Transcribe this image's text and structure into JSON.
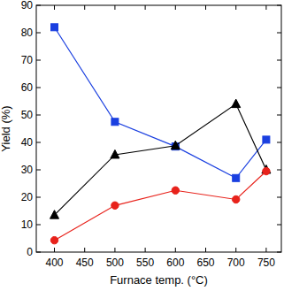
{
  "chart_data": {
    "type": "line",
    "x_label": "Furnace temp. (°C)",
    "y_label": "Yield (%)",
    "x": [
      400,
      500,
      600,
      700,
      750
    ],
    "series": [
      {
        "color": "#1a3fe0",
        "marker": "square",
        "line_style": "solid",
        "values": [
          82,
          47.5,
          38.5,
          27,
          41
        ]
      },
      {
        "color": "#000000",
        "marker": "triangle",
        "line_style": "solid",
        "values": [
          13.5,
          35.5,
          38.8,
          54,
          30
        ]
      },
      {
        "color": "#e8221b",
        "marker": "circle",
        "line_style": "solid",
        "values": [
          4.3,
          17,
          22.5,
          19.2,
          29.5
        ]
      }
    ],
    "xlim": [
      370,
      775
    ],
    "xticks": [
      400,
      450,
      500,
      550,
      600,
      650,
      700,
      750
    ],
    "ylim": [
      0,
      90
    ],
    "yticks": [
      0,
      10,
      20,
      30,
      40,
      50,
      60,
      70,
      80,
      90
    ],
    "grid": false
  }
}
